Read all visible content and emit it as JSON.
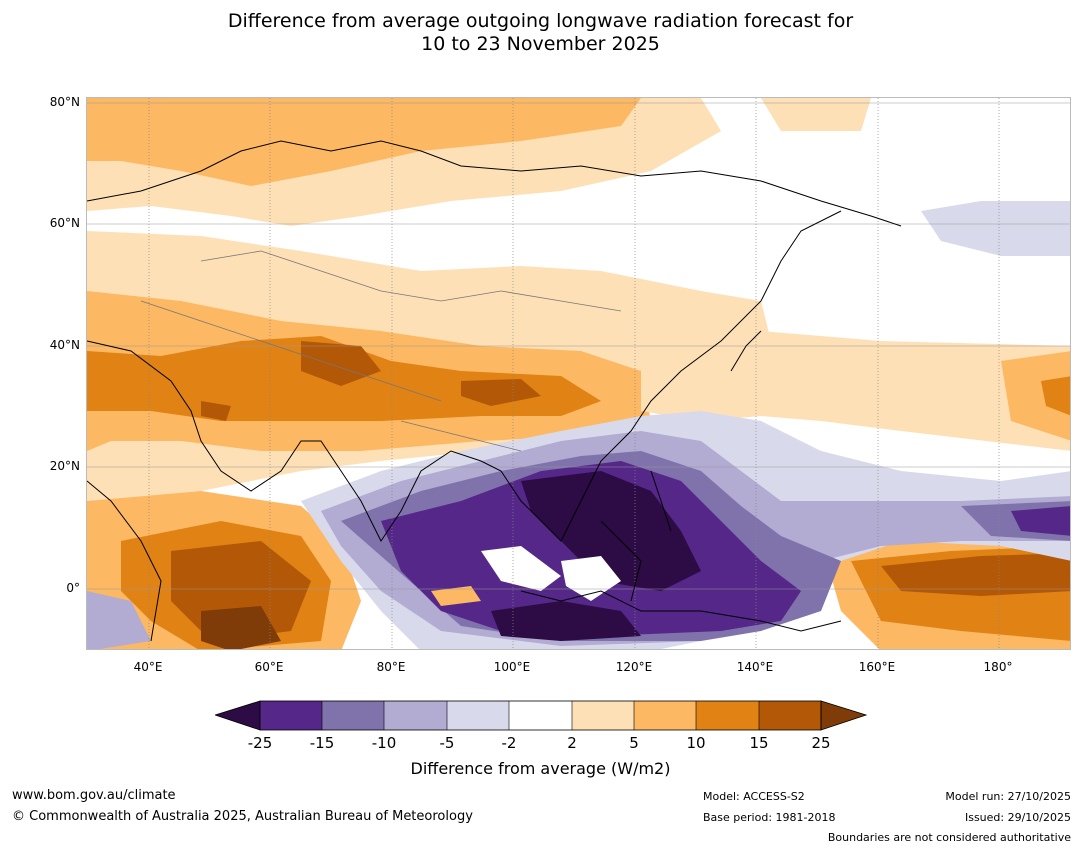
{
  "title": {
    "line1": "Difference from average outgoing longwave radiation forecast for",
    "line2": "10 to 23 November 2025"
  },
  "map": {
    "lat_labels": [
      "80°N",
      "60°N",
      "40°N",
      "20°N",
      "0°"
    ],
    "lon_labels": [
      "40°E",
      "60°E",
      "80°E",
      "100°E",
      "120°E",
      "140°E",
      "160°E",
      "180°"
    ]
  },
  "colorbar": {
    "ticks": [
      "-25",
      "-15",
      "-10",
      "-5",
      "-2",
      "2",
      "5",
      "10",
      "15",
      "25"
    ],
    "title": "Difference from average (W/m2)",
    "colors": {
      "under": "#2d0b45",
      "c1": "#542788",
      "c2": "#8073ac",
      "c3": "#b2abd2",
      "c4": "#d8daeb",
      "c5": "#ffffff",
      "c6": "#fee0b6",
      "c7": "#fdb863",
      "c8": "#e08214",
      "c9": "#b35806",
      "over": "#7f3b08"
    }
  },
  "footer": {
    "website": "www.bom.gov.au/climate",
    "copyright": "© Commonwealth of Australia 2025, Australian Bureau of Meteorology",
    "model": "Model: ACCESS-S2",
    "base_period": "Base period: 1981-2018",
    "model_run": "Model run: 27/10/2025",
    "issued": "Issued: 29/10/2025",
    "disclaimer": "Boundaries are not considered authoritative"
  }
}
